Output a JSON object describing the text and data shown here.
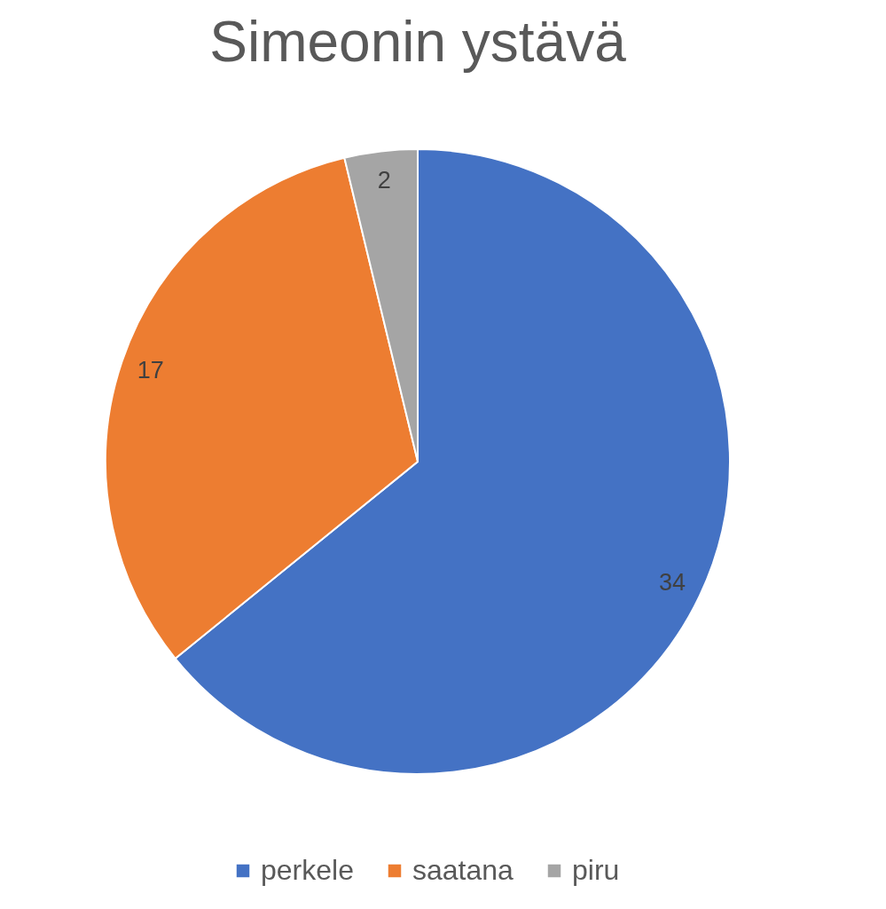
{
  "chart_data": {
    "type": "pie",
    "title": "Simeonin ystävä",
    "categories": [
      "perkele",
      "saatana",
      "piru"
    ],
    "values": [
      34,
      17,
      2
    ],
    "colors": [
      "#4472c4",
      "#ed7d31",
      "#a5a5a5"
    ],
    "data_labels": true,
    "legend": "bottom"
  }
}
